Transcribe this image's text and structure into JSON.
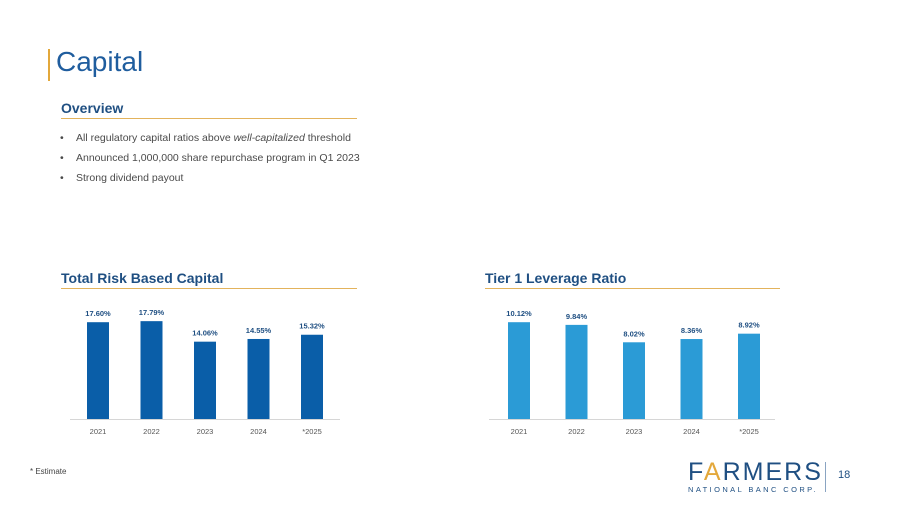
{
  "slide": {
    "title": "Capital",
    "overview_heading": "Overview",
    "bullets": [
      {
        "pre": "All regulatory capital ratios above ",
        "em": "well-capitalized",
        "post": " threshold"
      },
      {
        "text": "Announced 1,000,000 share repurchase program in Q1 2023"
      },
      {
        "text": "Strong dividend payout"
      }
    ],
    "footnote": "* Estimate",
    "page_number": "18",
    "logo": {
      "main_pre": "F",
      "main_accent": "A",
      "main_post": "RMERS",
      "sub": "NATIONAL BANC CORP."
    }
  },
  "chart_data": [
    {
      "type": "bar",
      "title": "Total Risk Based Capital",
      "categories": [
        "2021",
        "2022",
        "2023",
        "2024",
        "*2025"
      ],
      "values": [
        17.6,
        17.79,
        14.06,
        14.55,
        15.32
      ],
      "labels": [
        "17.60%",
        "17.79%",
        "14.06%",
        "14.55%",
        "15.32%"
      ],
      "ylim": [
        0,
        20
      ],
      "color": "#0a5ea8"
    },
    {
      "type": "bar",
      "title": "Tier 1 Leverage Ratio",
      "categories": [
        "2021",
        "2022",
        "2023",
        "2024",
        "*2025"
      ],
      "values": [
        10.12,
        9.84,
        8.02,
        8.36,
        8.92
      ],
      "labels": [
        "10.12%",
        "9.84%",
        "8.02%",
        "8.36%",
        "8.92%"
      ],
      "ylim": [
        0,
        11.5
      ],
      "color": "#2b9bd6"
    }
  ]
}
